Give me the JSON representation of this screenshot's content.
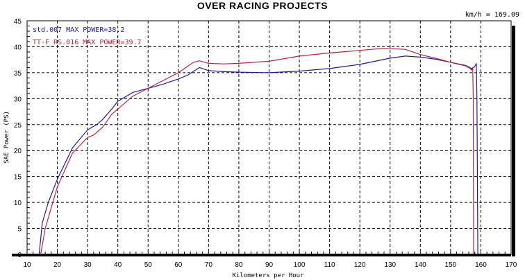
{
  "chart_data": {
    "type": "line",
    "title": "OVER RACING PROJECTS",
    "readout": "km/h = 169.09",
    "xlabel": "Kilometers per Hour",
    "ylabel": "SAE Power (PS)",
    "xlim": [
      10,
      170
    ],
    "ylim": [
      0,
      45
    ],
    "xticks": [
      10,
      20,
      30,
      40,
      50,
      60,
      70,
      80,
      90,
      100,
      110,
      120,
      130,
      140,
      150,
      160,
      170
    ],
    "yticks": [
      0,
      5,
      10,
      15,
      20,
      25,
      30,
      35,
      40,
      45
    ],
    "grid": true,
    "legend_position": "top-left",
    "series": [
      {
        "name": "std.007  MAX POWER=38.2",
        "color": "#1a1aa0",
        "x": [
          14,
          15,
          17,
          20,
          25,
          30,
          33,
          35,
          38,
          40,
          45,
          50,
          55,
          60,
          63,
          67,
          70,
          75,
          80,
          90,
          100,
          110,
          120,
          125,
          130,
          135,
          140,
          145,
          150,
          155,
          157,
          158,
          158.5,
          158.7,
          159
        ],
        "y": [
          0,
          6,
          10,
          14.5,
          20.5,
          24,
          25,
          26,
          28,
          29.5,
          31.2,
          32,
          32.8,
          33.8,
          34.5,
          36,
          35.4,
          35.2,
          35.1,
          35,
          35.3,
          35.8,
          36.6,
          37.2,
          37.8,
          38.2,
          38,
          37.6,
          37,
          36.4,
          35.8,
          36.2,
          36.8,
          30,
          0
        ]
      },
      {
        "name": "TT-F_RS.016  MAX POWER=39.7",
        "color": "#c0203a",
        "x": [
          14.5,
          16,
          18,
          20,
          25,
          30,
          32,
          35,
          38,
          40,
          45,
          50,
          55,
          60,
          65,
          67,
          70,
          75,
          80,
          90,
          100,
          110,
          120,
          128,
          135,
          140,
          145,
          150,
          155,
          156.5,
          157,
          157.3,
          157.5,
          157.6
        ],
        "y": [
          0,
          5,
          9,
          13,
          19.5,
          22.5,
          23,
          24.5,
          27,
          28,
          30.5,
          32,
          33.5,
          35,
          37,
          37.3,
          36.8,
          36.7,
          36.8,
          37.2,
          38.2,
          38.8,
          39.3,
          39.7,
          39.5,
          38.5,
          37.8,
          37,
          36.3,
          35.8,
          35.5,
          36,
          30,
          0
        ]
      }
    ]
  }
}
